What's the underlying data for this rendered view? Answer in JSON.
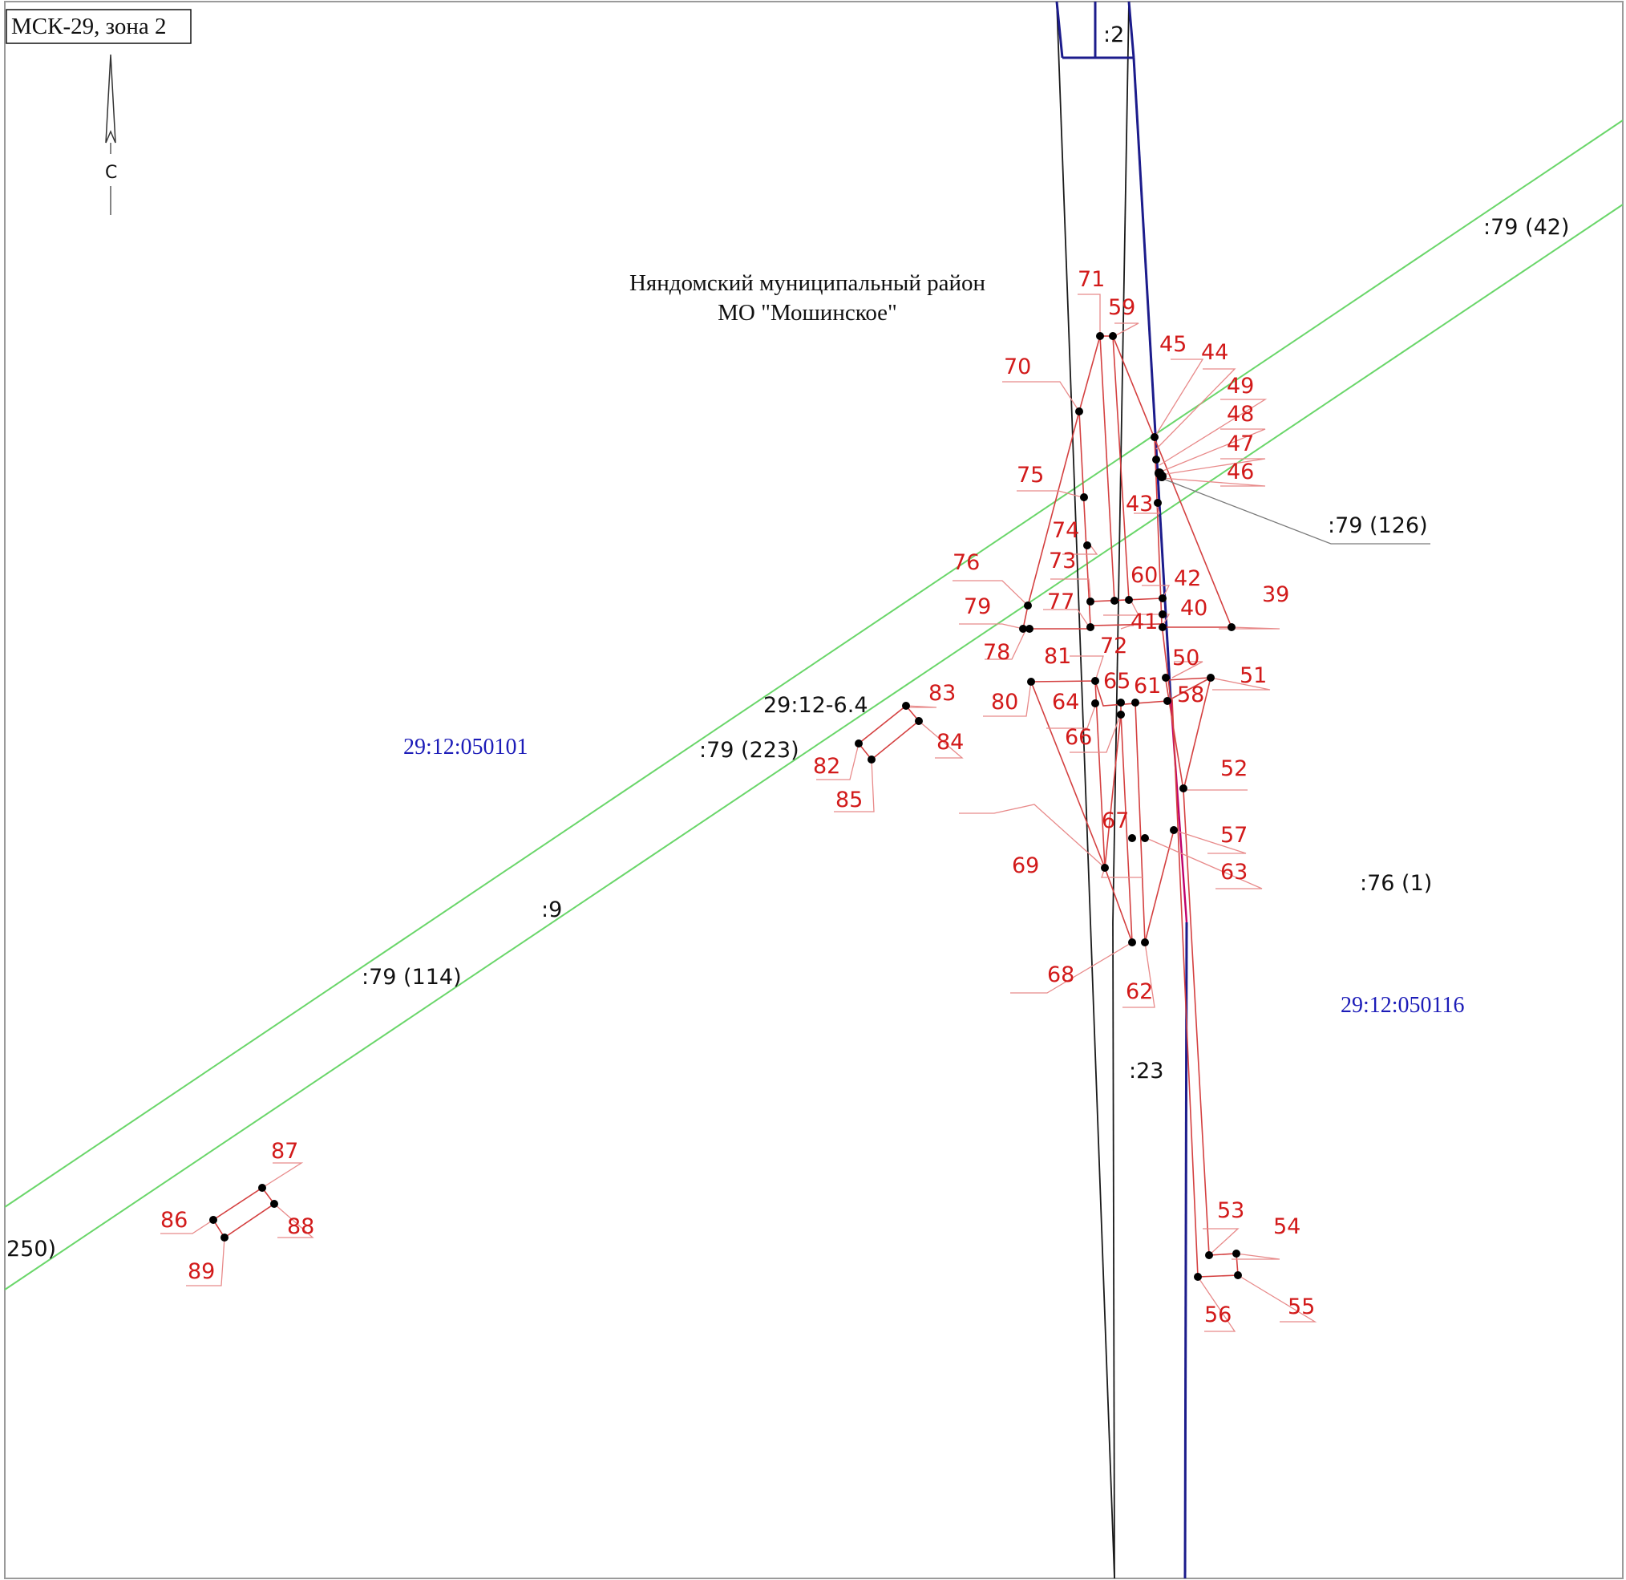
{
  "coordinate_system": "МСК-29, зона 2",
  "north_label": "С",
  "district": {
    "line1": "Няндомский муниципальный район",
    "line2": "МО \"Мошинское\""
  },
  "cadastral_blocks": [
    {
      "id": "west",
      "text": "29:12:050101"
    },
    {
      "id": "east",
      "text": "29:12:050116"
    }
  ],
  "parcel_labels": [
    {
      "id": "p2",
      "text": ":2"
    },
    {
      "id": "p79-42",
      "text": ":79 (42)"
    },
    {
      "id": "p79-126",
      "text": ":79 (126)"
    },
    {
      "id": "zone",
      "text": "29:12-6.4"
    },
    {
      "id": "p79-223",
      "text": ":79 (223)"
    },
    {
      "id": "p9",
      "text": ":9"
    },
    {
      "id": "p79-114",
      "text": ":79 (114)"
    },
    {
      "id": "p76-1",
      "text": ":76 (1)"
    },
    {
      "id": "p23",
      "text": ":23"
    },
    {
      "id": "p250",
      "text": "250)"
    }
  ],
  "points": [
    "39",
    "40",
    "41",
    "42",
    "43",
    "44",
    "45",
    "46",
    "47",
    "48",
    "49",
    "50",
    "51",
    "52",
    "53",
    "54",
    "55",
    "56",
    "57",
    "58",
    "59",
    "60",
    "61",
    "62",
    "63",
    "64",
    "65",
    "66",
    "67",
    "68",
    "69",
    "70",
    "71",
    "72",
    "73",
    "74",
    "75",
    "76",
    "77",
    "78",
    "79",
    "80",
    "81",
    "82",
    "83",
    "84",
    "85",
    "86",
    "87",
    "88",
    "89"
  ]
}
